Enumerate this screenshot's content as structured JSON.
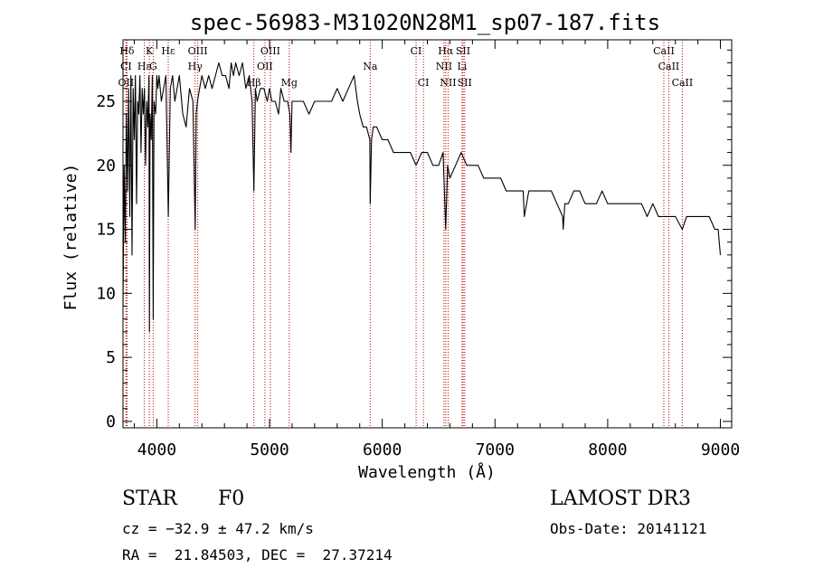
{
  "chart_data": {
    "type": "line",
    "title": "spec-56983-M31020N28M1_sp07-187.fits",
    "xlabel": "Wavelength (Å)",
    "ylabel": "Flux (relative)",
    "xlim": [
      3700,
      9100
    ],
    "ylim": [
      -0.5,
      29.8
    ],
    "xticks": [
      4000,
      5000,
      6000,
      7000,
      8000,
      9000
    ],
    "yticks": [
      0,
      5,
      10,
      15,
      20,
      25
    ],
    "grid": false,
    "spectrum": {
      "x": [
        3700,
        3710,
        3720,
        3730,
        3740,
        3750,
        3760,
        3770,
        3780,
        3790,
        3800,
        3810,
        3820,
        3830,
        3840,
        3850,
        3860,
        3870,
        3880,
        3890,
        3900,
        3910,
        3920,
        3930,
        3934,
        3940,
        3950,
        3960,
        3968,
        3975,
        3990,
        4000,
        4010,
        4020,
        4040,
        4060,
        4080,
        4102,
        4120,
        4140,
        4160,
        4180,
        4200,
        4230,
        4260,
        4290,
        4320,
        4340,
        4350,
        4360,
        4380,
        4400,
        4430,
        4460,
        4490,
        4520,
        4550,
        4580,
        4610,
        4640,
        4660,
        4680,
        4700,
        4730,
        4760,
        4790,
        4820,
        4845,
        4861,
        4875,
        4890,
        4920,
        4950,
        4980,
        5000,
        5020,
        5050,
        5080,
        5100,
        5130,
        5160,
        5180,
        5190,
        5200,
        5220,
        5250,
        5300,
        5350,
        5400,
        5450,
        5500,
        5550,
        5600,
        5650,
        5700,
        5750,
        5780,
        5800,
        5830,
        5860,
        5890,
        5893,
        5905,
        5920,
        5950,
        6000,
        6050,
        6100,
        6150,
        6200,
        6250,
        6300,
        6350,
        6400,
        6450,
        6500,
        6540,
        6563,
        6580,
        6600,
        6650,
        6700,
        6750,
        6800,
        6850,
        6900,
        6950,
        7000,
        7050,
        7100,
        7150,
        7200,
        7250,
        7260,
        7300,
        7350,
        7400,
        7450,
        7500,
        7550,
        7600,
        7605,
        7620,
        7650,
        7700,
        7750,
        7800,
        7850,
        7900,
        7950,
        8000,
        8050,
        8100,
        8150,
        8200,
        8250,
        8300,
        8350,
        8400,
        8450,
        8498,
        8542,
        8600,
        8662,
        8700,
        8750,
        8800,
        8850,
        8900,
        8950,
        8980,
        9000
      ],
      "y": [
        9,
        20,
        14,
        24,
        18,
        26,
        16,
        27,
        13,
        26,
        22,
        27,
        17,
        25,
        24,
        27,
        21,
        26,
        24,
        26,
        20,
        25,
        23,
        27,
        7,
        24,
        22,
        27,
        8,
        25,
        24,
        27,
        26,
        27,
        25,
        26,
        27,
        16,
        26,
        27,
        25,
        26,
        27,
        24,
        23,
        26,
        25,
        15,
        24,
        25,
        26,
        27,
        26,
        27,
        26,
        27,
        28,
        27,
        27,
        26,
        28,
        27,
        28,
        27,
        28,
        26,
        27,
        25,
        18,
        26,
        25,
        26,
        26,
        25,
        26,
        25,
        25,
        24,
        26,
        25,
        25,
        24,
        21,
        25,
        25,
        25,
        25,
        24,
        25,
        25,
        25,
        25,
        26,
        25,
        26,
        27,
        25,
        24,
        23,
        23,
        22,
        17,
        22,
        23,
        23,
        22,
        22,
        21,
        21,
        21,
        21,
        20,
        21,
        21,
        20,
        20,
        21,
        15,
        20,
        19,
        20,
        21,
        20,
        20,
        20,
        19,
        19,
        19,
        19,
        18,
        18,
        18,
        18,
        16,
        18,
        18,
        18,
        18,
        18,
        17,
        16,
        15,
        17,
        17,
        18,
        18,
        17,
        17,
        17,
        18,
        17,
        17,
        17,
        17,
        17,
        17,
        17,
        16,
        17,
        16,
        16,
        16,
        16,
        15,
        16,
        16,
        16,
        16,
        16,
        15,
        15,
        13
      ]
    },
    "lines": [
      {
        "label": "Hδ",
        "wl": 3735,
        "row": 0
      },
      {
        "label": "K",
        "wl": 3934,
        "row": 0
      },
      {
        "label": "Hε",
        "wl": 4101,
        "row": 0
      },
      {
        "label": "OIII",
        "wl": 4363,
        "row": 0
      },
      {
        "label": "OIII",
        "wl": 5007,
        "row": 0
      },
      {
        "label": "CI",
        "wl": 6300,
        "row": 0
      },
      {
        "label": "Hα",
        "wl": 6563,
        "row": 0
      },
      {
        "label": "SII",
        "wl": 6717,
        "row": 0
      },
      {
        "label": "CaII",
        "wl": 8498,
        "row": 0
      },
      {
        "label": "CI",
        "wl": 3727,
        "row": 1
      },
      {
        "label": "Hε",
        "wl": 3889,
        "row": 1
      },
      {
        "label": "G",
        "wl": 3968,
        "row": 1
      },
      {
        "label": "Hγ",
        "wl": 4340,
        "row": 1
      },
      {
        "label": "OII",
        "wl": 4959,
        "row": 1
      },
      {
        "label": "Na",
        "wl": 5893,
        "row": 1
      },
      {
        "label": "NII",
        "wl": 6548,
        "row": 1
      },
      {
        "label": "Li",
        "wl": 6708,
        "row": 1
      },
      {
        "label": "CaII",
        "wl": 8542,
        "row": 1
      },
      {
        "label": "OII",
        "wl": 3727,
        "row": 2
      },
      {
        "label": "Hβ",
        "wl": 4861,
        "row": 2
      },
      {
        "label": "Mg",
        "wl": 5175,
        "row": 2
      },
      {
        "label": "CI",
        "wl": 6365,
        "row": 2
      },
      {
        "label": "NII",
        "wl": 6584,
        "row": 2
      },
      {
        "label": "SII",
        "wl": 6731,
        "row": 2
      },
      {
        "label": "CaII",
        "wl": 8662,
        "row": 2
      }
    ]
  },
  "info": {
    "class_label": "STAR",
    "subclass": "F0",
    "survey": "LAMOST DR3",
    "cz": "cz = −32.9 ± 47.2 km/s",
    "obs_date": "Obs-Date: 20141121",
    "coords": "RA =  21.84503, DEC =  27.37214"
  }
}
